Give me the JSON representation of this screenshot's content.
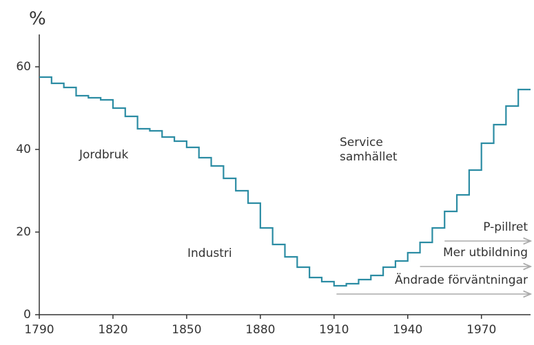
{
  "chart_data": {
    "type": "step",
    "y_label": "%",
    "x": [
      1790,
      1795,
      1800,
      1805,
      1810,
      1815,
      1820,
      1825,
      1830,
      1835,
      1840,
      1845,
      1850,
      1855,
      1860,
      1865,
      1870,
      1875,
      1880,
      1885,
      1890,
      1895,
      1900,
      1905,
      1910,
      1915,
      1920,
      1925,
      1930,
      1935,
      1940,
      1945,
      1950,
      1955,
      1960,
      1965,
      1970,
      1975,
      1980,
      1985
    ],
    "values": [
      57.5,
      56,
      55,
      53,
      52.5,
      52,
      50,
      48,
      45,
      44.5,
      43,
      42,
      40.5,
      38,
      36,
      33,
      30,
      27,
      21,
      17,
      14,
      11.5,
      9,
      8,
      7,
      7.5,
      8.5,
      9.5,
      11.5,
      13,
      15,
      17.5,
      21,
      25,
      29,
      35,
      41.5,
      46,
      50.5,
      54.5
    ],
    "color": "#2b8ca3",
    "xlim": [
      1790,
      1990
    ],
    "ylim": [
      0,
      68
    ],
    "xticks": [
      1790,
      1820,
      1850,
      1880,
      1910,
      1940,
      1970
    ],
    "yticks": [
      0,
      20,
      40,
      60
    ],
    "labels": [
      {
        "lines": [
          "Jordbruk"
        ]
      },
      {
        "lines": [
          "Industri"
        ]
      },
      {
        "lines": [
          "Service",
          "samhället"
        ]
      }
    ],
    "arrows": [
      {
        "text": "P-pillret",
        "from": 1955
      },
      {
        "text": "Mer utbildning",
        "from": 1945
      },
      {
        "text": "Ändrade förväntningar",
        "from": 1911
      }
    ]
  }
}
